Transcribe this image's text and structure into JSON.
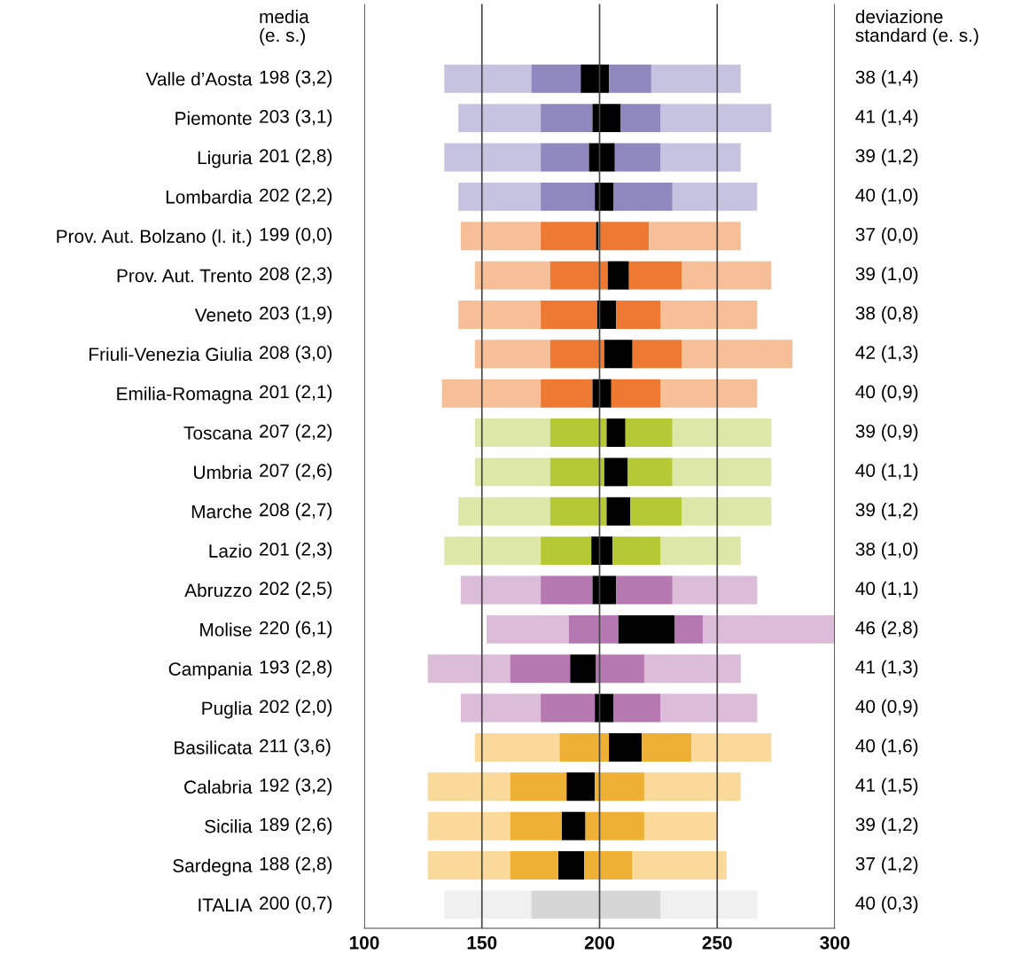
{
  "chart_data": {
    "type": "bar",
    "orientation": "horizontal",
    "categories": [
      "Valle d’Aosta",
      "Piemonte",
      "Liguria",
      "Lombardia",
      "Prov. Aut. Bolzano (l. it.)",
      "Prov. Aut. Trento",
      "Veneto",
      "Friuli-Venezia Giulia",
      "Emilia-Romagna",
      "Toscana",
      "Umbria",
      "Marche",
      "Lazio",
      "Abruzzo",
      "Molise",
      "Campania",
      "Puglia",
      "Basilicata",
      "Calabria",
      "Sicilia",
      "Sardegna",
      "ITALIA"
    ],
    "series": [
      {
        "base": [
          134,
          140,
          134,
          140,
          141,
          147,
          140,
          147,
          133,
          147,
          147,
          140,
          134,
          141,
          152,
          127,
          141,
          147,
          127,
          127,
          127,
          134
        ],
        "values": [
          37,
          35,
          41,
          35,
          34,
          32,
          35,
          32,
          42,
          32,
          32,
          39,
          41,
          34,
          35,
          35,
          34,
          36,
          35,
          35,
          35,
          37
        ],
        "colors": [
          "#c5c3e0",
          "#c5c3e0",
          "#c5c3e0",
          "#c5c3e0",
          "#f6bf97",
          "#f6bf97",
          "#f6bf97",
          "#f6bf97",
          "#f6bf97",
          "#dde8a8",
          "#dde8a8",
          "#dde8a8",
          "#dde8a8",
          "#dbbcd9",
          "#dbbcd9",
          "#dbbcd9",
          "#dbbcd9",
          "#fbd99a",
          "#fbd99a",
          "#fbd99a",
          "#fbd99a",
          "#f0f0f0"
        ]
      },
      {
        "base": [
          171,
          175,
          175,
          175,
          175,
          179,
          175,
          179,
          175,
          179,
          179,
          179,
          175,
          175,
          187,
          162,
          175,
          183,
          162,
          162,
          162,
          171
        ],
        "values": [
          21,
          22,
          20.5,
          23,
          23.5,
          24.5,
          24,
          23,
          22,
          24,
          23,
          24,
          21.5,
          22,
          21,
          25.5,
          23,
          21,
          24,
          22,
          20.5,
          29
        ],
        "colors": [
          "#8e88bf",
          "#8e88bf",
          "#8e88bf",
          "#8e88bf",
          "#ee7932",
          "#ee7932",
          "#ee7932",
          "#ee7932",
          "#ee7932",
          "#b5c935",
          "#b5c935",
          "#b5c935",
          "#b5c935",
          "#b678b0",
          "#b678b0",
          "#b678b0",
          "#b678b0",
          "#efb135",
          "#efb135",
          "#efb135",
          "#efb135",
          "#d6d6d6"
        ]
      },
      {
        "base": [
          192,
          197,
          195.5,
          198,
          198.5,
          203.5,
          199,
          202,
          197,
          203,
          202,
          203,
          196.5,
          197,
          208,
          187.5,
          198,
          204,
          186,
          184,
          182.5,
          null
        ],
        "values": [
          12,
          12,
          11,
          8,
          1,
          9,
          8,
          12,
          8,
          8,
          10,
          10,
          9,
          10,
          24,
          11,
          8,
          14,
          12,
          10,
          11,
          null
        ],
        "color": "#000000"
      },
      {
        "base": [
          204,
          209,
          206.5,
          206,
          199.5,
          212.5,
          207,
          214,
          205,
          211,
          212,
          213,
          205.5,
          207,
          232,
          198.5,
          206,
          218,
          198,
          194,
          193.5,
          200
        ],
        "values": [
          18,
          17,
          19.5,
          25,
          21.5,
          22.5,
          19,
          21,
          21,
          20,
          19,
          22,
          20.5,
          24,
          12,
          20.5,
          20,
          21,
          21,
          25,
          20.5,
          26
        ],
        "colors": [
          "#8e88bf",
          "#8e88bf",
          "#8e88bf",
          "#8e88bf",
          "#ee7932",
          "#ee7932",
          "#ee7932",
          "#ee7932",
          "#ee7932",
          "#b5c935",
          "#b5c935",
          "#b5c935",
          "#b5c935",
          "#b678b0",
          "#b678b0",
          "#b678b0",
          "#b678b0",
          "#efb135",
          "#efb135",
          "#efb135",
          "#efb135",
          "#d6d6d6"
        ]
      },
      {
        "base": [
          222,
          226,
          226,
          231,
          221,
          235,
          226,
          235,
          226,
          231,
          231,
          235,
          226,
          231,
          244,
          219,
          226,
          239,
          219,
          219,
          214,
          226
        ],
        "values": [
          38,
          47,
          34,
          36,
          39,
          38,
          41,
          47,
          41,
          42,
          42,
          38,
          34,
          36,
          56,
          41,
          41,
          34,
          41,
          31,
          40,
          41
        ],
        "colors": [
          "#c5c3e0",
          "#c5c3e0",
          "#c5c3e0",
          "#c5c3e0",
          "#f6bf97",
          "#f6bf97",
          "#f6bf97",
          "#f6bf97",
          "#f6bf97",
          "#dde8a8",
          "#dde8a8",
          "#dde8a8",
          "#dde8a8",
          "#dbbcd9",
          "#dbbcd9",
          "#dbbcd9",
          "#dbbcd9",
          "#fbd99a",
          "#fbd99a",
          "#fbd99a",
          "#fbd99a",
          "#f0f0f0"
        ]
      }
    ],
    "xlim": [
      100,
      300
    ],
    "xticks": [
      100,
      150,
      200,
      250,
      300
    ],
    "grid": "x",
    "annotations": [
      "media\n(e. s.)",
      "198 (3,2)",
      "203 (3,1)",
      "201 (2,8)",
      "202 (2,2)",
      "199 (0,0)",
      "208 (2,3)",
      "203 (1,9)",
      "208 (3,0)",
      "201 (2,1)",
      "207 (2,2)",
      "207 (2,6)",
      "208 (2,7)",
      "201 (2,3)",
      "202 (2,5)",
      "220 (6,1)",
      "193 (2,8)",
      "202 (2,0)",
      "211 (3,6)",
      "192 (3,2)",
      "189 (2,6)",
      "188 (2,8)",
      "200 (0,7)",
      "deviazione\nstandard (e. s.)",
      "38 (1,4)",
      "41 (1,4)",
      "39 (1,2)",
      "40 (1,0)",
      "37 (0,0)",
      "39 (1,0)",
      "38 (0,8)",
      "42 (1,3)",
      "40 (0,9)",
      "39 (0,9)",
      "40 (1,1)",
      "39 (1,2)",
      "38 (1,0)",
      "40 (1,1)",
      "46 (2,8)",
      "41 (1,3)",
      "40 (0,9)",
      "40 (1,6)",
      "41 (1,5)",
      "39 (1,2)",
      "37 (1,2)",
      "40 (0,3)"
    ]
  }
}
